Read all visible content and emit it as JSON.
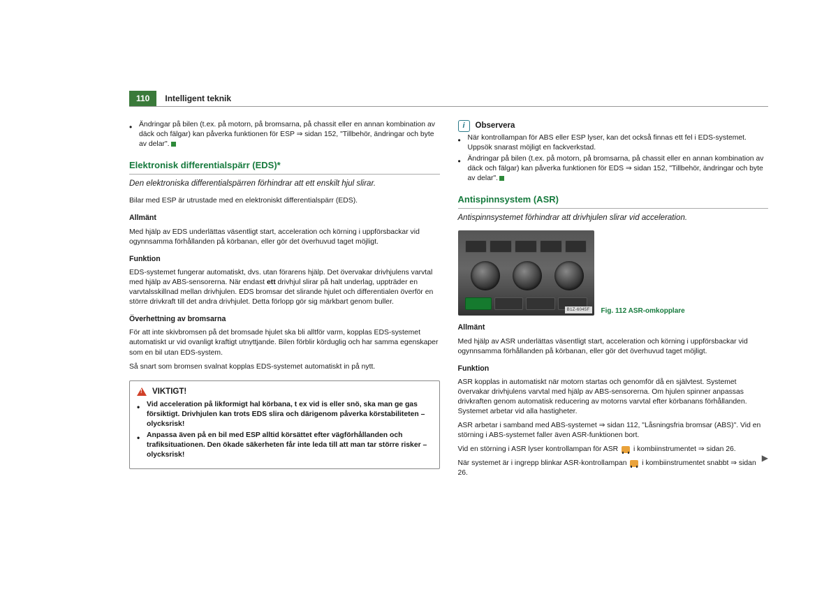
{
  "header": {
    "page_number": "110",
    "section_title": "Intelligent teknik"
  },
  "left": {
    "top_bullet": "Ändringar på bilen (t.ex. på motorn, på bromsarna, på chassit eller en annan kombination av däck och fälgar) kan påverka funktionen för ESP ⇒ sidan 152, \"Tillbehör, ändringar och byte av delar\".",
    "h2": "Elektronisk differentialspärr (EDS)*",
    "lead": "Den elektroniska differentialspärren förhindrar att ett enskilt hjul slirar.",
    "intro": "Bilar med ESP är utrustade med en elektroniskt differentialspärr (EDS).",
    "h4a": "Allmänt",
    "pa": "Med hjälp av EDS underlättas väsentligt start, acceleration och körning i uppförsbackar vid ogynnsamma förhållanden på körbanan, eller gör det överhuvud taget möjligt.",
    "h4b": "Funktion",
    "pb1": "EDS-systemet fungerar automatiskt, dvs. utan förarens hjälp. Det övervakar drivhjulens varvtal med hjälp av ABS-sensorerna. När endast ",
    "pb_bold": "ett",
    "pb2": " drivhjul slirar på halt underlag, uppträder en varvtalsskillnad mellan drivhjulen. EDS bromsar det slirande hjulet och differentialen överför en större drivkraft till det andra drivhjulet. Detta förlopp gör sig märkbart genom buller.",
    "h4c": "Överhettning av bromsarna",
    "pc1": "För att inte skivbromsen på det bromsade hjulet ska bli alltför varm, kopplas EDS-systemet automatiskt ur vid ovanligt kraftigt utnyttjande. Bilen förblir körduglig och har samma egenskaper som en bil utan EDS-system.",
    "pc2": "Så snart som bromsen svalnat kopplas EDS-systemet automatiskt in på nytt.",
    "warn_title": "VIKTIGT!",
    "warn_b1": "Vid acceleration på likformigt hal körbana, t ex vid is eller snö, ska man ge gas försiktigt. Drivhjulen kan trots EDS slira och därigenom påverka körstabiliteten – olycksrisk!",
    "warn_b2": "Anpassa även på en bil med ESP alltid körsättet efter vägförhållanden och trafiksituationen. Den ökade säkerheten får inte leda till att man tar större risker – olycksrisk!"
  },
  "right": {
    "observe_label": "Observera",
    "obs_b1": "När kontrollampan för ABS eller ESP lyser, kan det också finnas ett fel i EDS-systemet. Uppsök snarast möjligt en fackverkstad.",
    "obs_b2": "Ändringar på bilen (t.ex. på motorn, på bromsarna, på chassit eller en annan kombination av däck och fälgar) kan påverka funktionen för EDS ⇒ sidan 152, \"Tillbehör, ändringar och byte av delar\".",
    "h2": "Antispinnsystem (ASR)",
    "lead": "Antispinnsystemet förhindrar att drivhjulen slirar vid acceleration.",
    "fig_tag": "B1Z-6045F",
    "fig_caption": "Fig. 112  ASR-omkopplare",
    "h4a": "Allmänt",
    "pa": "Med hjälp av ASR underlättas väsentligt start, acceleration och körning i uppförsbackar vid ogynnsamma förhållanden på körbanan, eller gör det överhuvud taget möjligt.",
    "h4b": "Funktion",
    "pb": "ASR kopplas in automatiskt när motorn startas och genomför då en självtest. Systemet övervakar drivhjulens varvtal med hjälp av ABS-sensorerna. Om hjulen spinner anpassas drivkraften genom automatisk reducering av motorns varvtal efter körbanans förhållanden. Systemet arbetar vid alla hastigheter.",
    "pc": "ASR arbetar i samband med ABS-systemet ⇒ sidan 112, \"Låsningsfria bromsar (ABS)\". Vid en störning i ABS-systemet faller även ASR-funktionen bort.",
    "pd_pre": "Vid en störning i ASR lyser kontrollampan för ASR ",
    "pd_post": " i kombiinstrumentet ⇒ sidan 26.",
    "pe_pre": "När systemet är i ingrepp blinkar ASR-kontrollampan ",
    "pe_post": " i kombiinstrumentet snabbt ⇒ sidan 26."
  }
}
